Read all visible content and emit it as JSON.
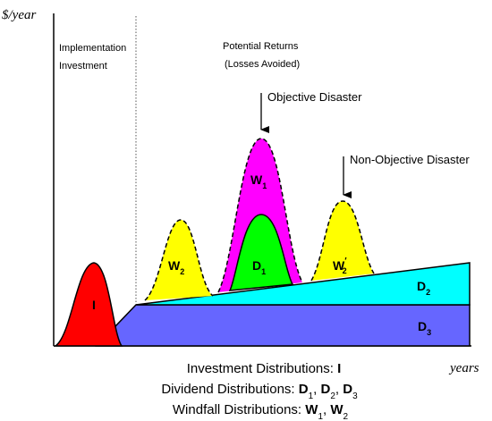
{
  "axes": {
    "y_label": "$/year",
    "x_label": "years"
  },
  "regions": {
    "left_title_line1": "Implementation",
    "left_title_line2": "Investment",
    "right_title_line1": "Potential Returns",
    "right_title_line2": "(Losses Avoided)"
  },
  "annotations": {
    "objective": "Objective Disaster",
    "non_objective": "Non-Objective Disaster"
  },
  "shape_labels": {
    "investment": "I",
    "w1_base": "W",
    "w1_sub": "1",
    "w2_base": "W",
    "w2_sub": "2",
    "d1_base": "D",
    "d1_sub": "1",
    "w2p_base": "W",
    "w2p_sup": "′",
    "w2p_sub": "2",
    "d2_base": "D",
    "d2_sub": "2",
    "d3_base": "D",
    "d3_sub": "3"
  },
  "legend": {
    "investment_prefix": "Investment Distributions: ",
    "investment_value": "I",
    "dividend_prefix": "Dividend Distributions: ",
    "dividend_d": "D",
    "dividend_s1": "1",
    "dividend_s2": "2",
    "dividend_s3": "3",
    "comma": ", ",
    "windfall_prefix": "Windfall Distributions: ",
    "windfall_w": "W",
    "windfall_s1": "1",
    "windfall_s2": "2"
  },
  "colors": {
    "investment": "#ff0000",
    "w1": "#ff00ff",
    "w2": "#ffff00",
    "d1": "#00ff00",
    "d2": "#00ffff",
    "d3": "#6666ff",
    "outline": "#000000"
  }
}
